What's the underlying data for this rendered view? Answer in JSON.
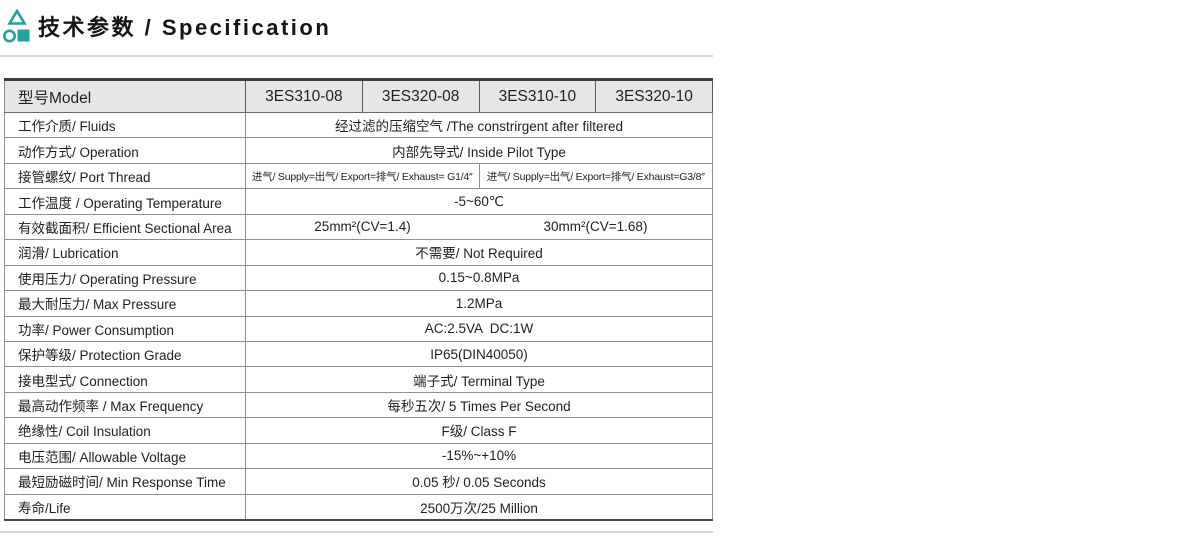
{
  "page": {
    "title": "技术参数 / Specification",
    "accent_color": "#1FA39A"
  },
  "table": {
    "header": {
      "label": "型号Model",
      "models": [
        "3ES310-08",
        "3ES320-08",
        "3ES310-10",
        "3ES320-10"
      ]
    },
    "rows": [
      {
        "param": "工作介质/ Fluids",
        "type": "full",
        "value": "经过滤的压缩空气 /The constrirgent after filtered"
      },
      {
        "param": "动作方式/ Operation",
        "type": "full",
        "value": "内部先导式/ Inside Pilot Type"
      },
      {
        "param": "接管螺纹/ Port Thread",
        "type": "split_divided",
        "value_left": "进气/ Supply=出气/ Export=排气/ Exhaust= G1/4″",
        "value_right": "进气/ Supply=出气/ Export=排气/ Exhaust=G3/8″"
      },
      {
        "param": "工作温度 / Operating Temperature",
        "type": "full",
        "value": "-5~60℃"
      },
      {
        "param": "有效截面积/ Efficient Sectional Area",
        "type": "split",
        "value_left": "25mm²(CV=1.4)",
        "value_right": "30mm²(CV=1.68)"
      },
      {
        "param": "润滑/ Lubrication",
        "type": "full",
        "value": "不需要/ Not Required"
      },
      {
        "param": "使用压力/ Operating Pressure",
        "type": "full",
        "value": "0.15~0.8MPa"
      },
      {
        "param": "最大耐压力/ Max Pressure",
        "type": "full",
        "value": "1.2MPa"
      },
      {
        "param": "功率/ Power Consumption",
        "type": "full",
        "value": "AC:2.5VA  DC:1W"
      },
      {
        "param": "保护等级/ Protection Grade",
        "type": "full",
        "value": "IP65(DIN40050)"
      },
      {
        "param": "接电型式/ Connection",
        "type": "full",
        "value": "端子式/ Terminal Type"
      },
      {
        "param": "最高动作频率 / Max Frequency",
        "type": "full",
        "value": "每秒五次/ 5 Times Per Second"
      },
      {
        "param": "绝缘性/ Coil Insulation",
        "type": "full",
        "value": "F级/ Class F"
      },
      {
        "param": "电压范围/ Allowable Voltage",
        "type": "full",
        "value": "-15%~+10%"
      },
      {
        "param": "最短励磁时间/ Min Response Time",
        "type": "full",
        "value": "0.05 秒/ 0.05 Seconds"
      },
      {
        "param": "寿命/Life",
        "type": "full",
        "value": "2500万次/25 Million"
      }
    ]
  }
}
